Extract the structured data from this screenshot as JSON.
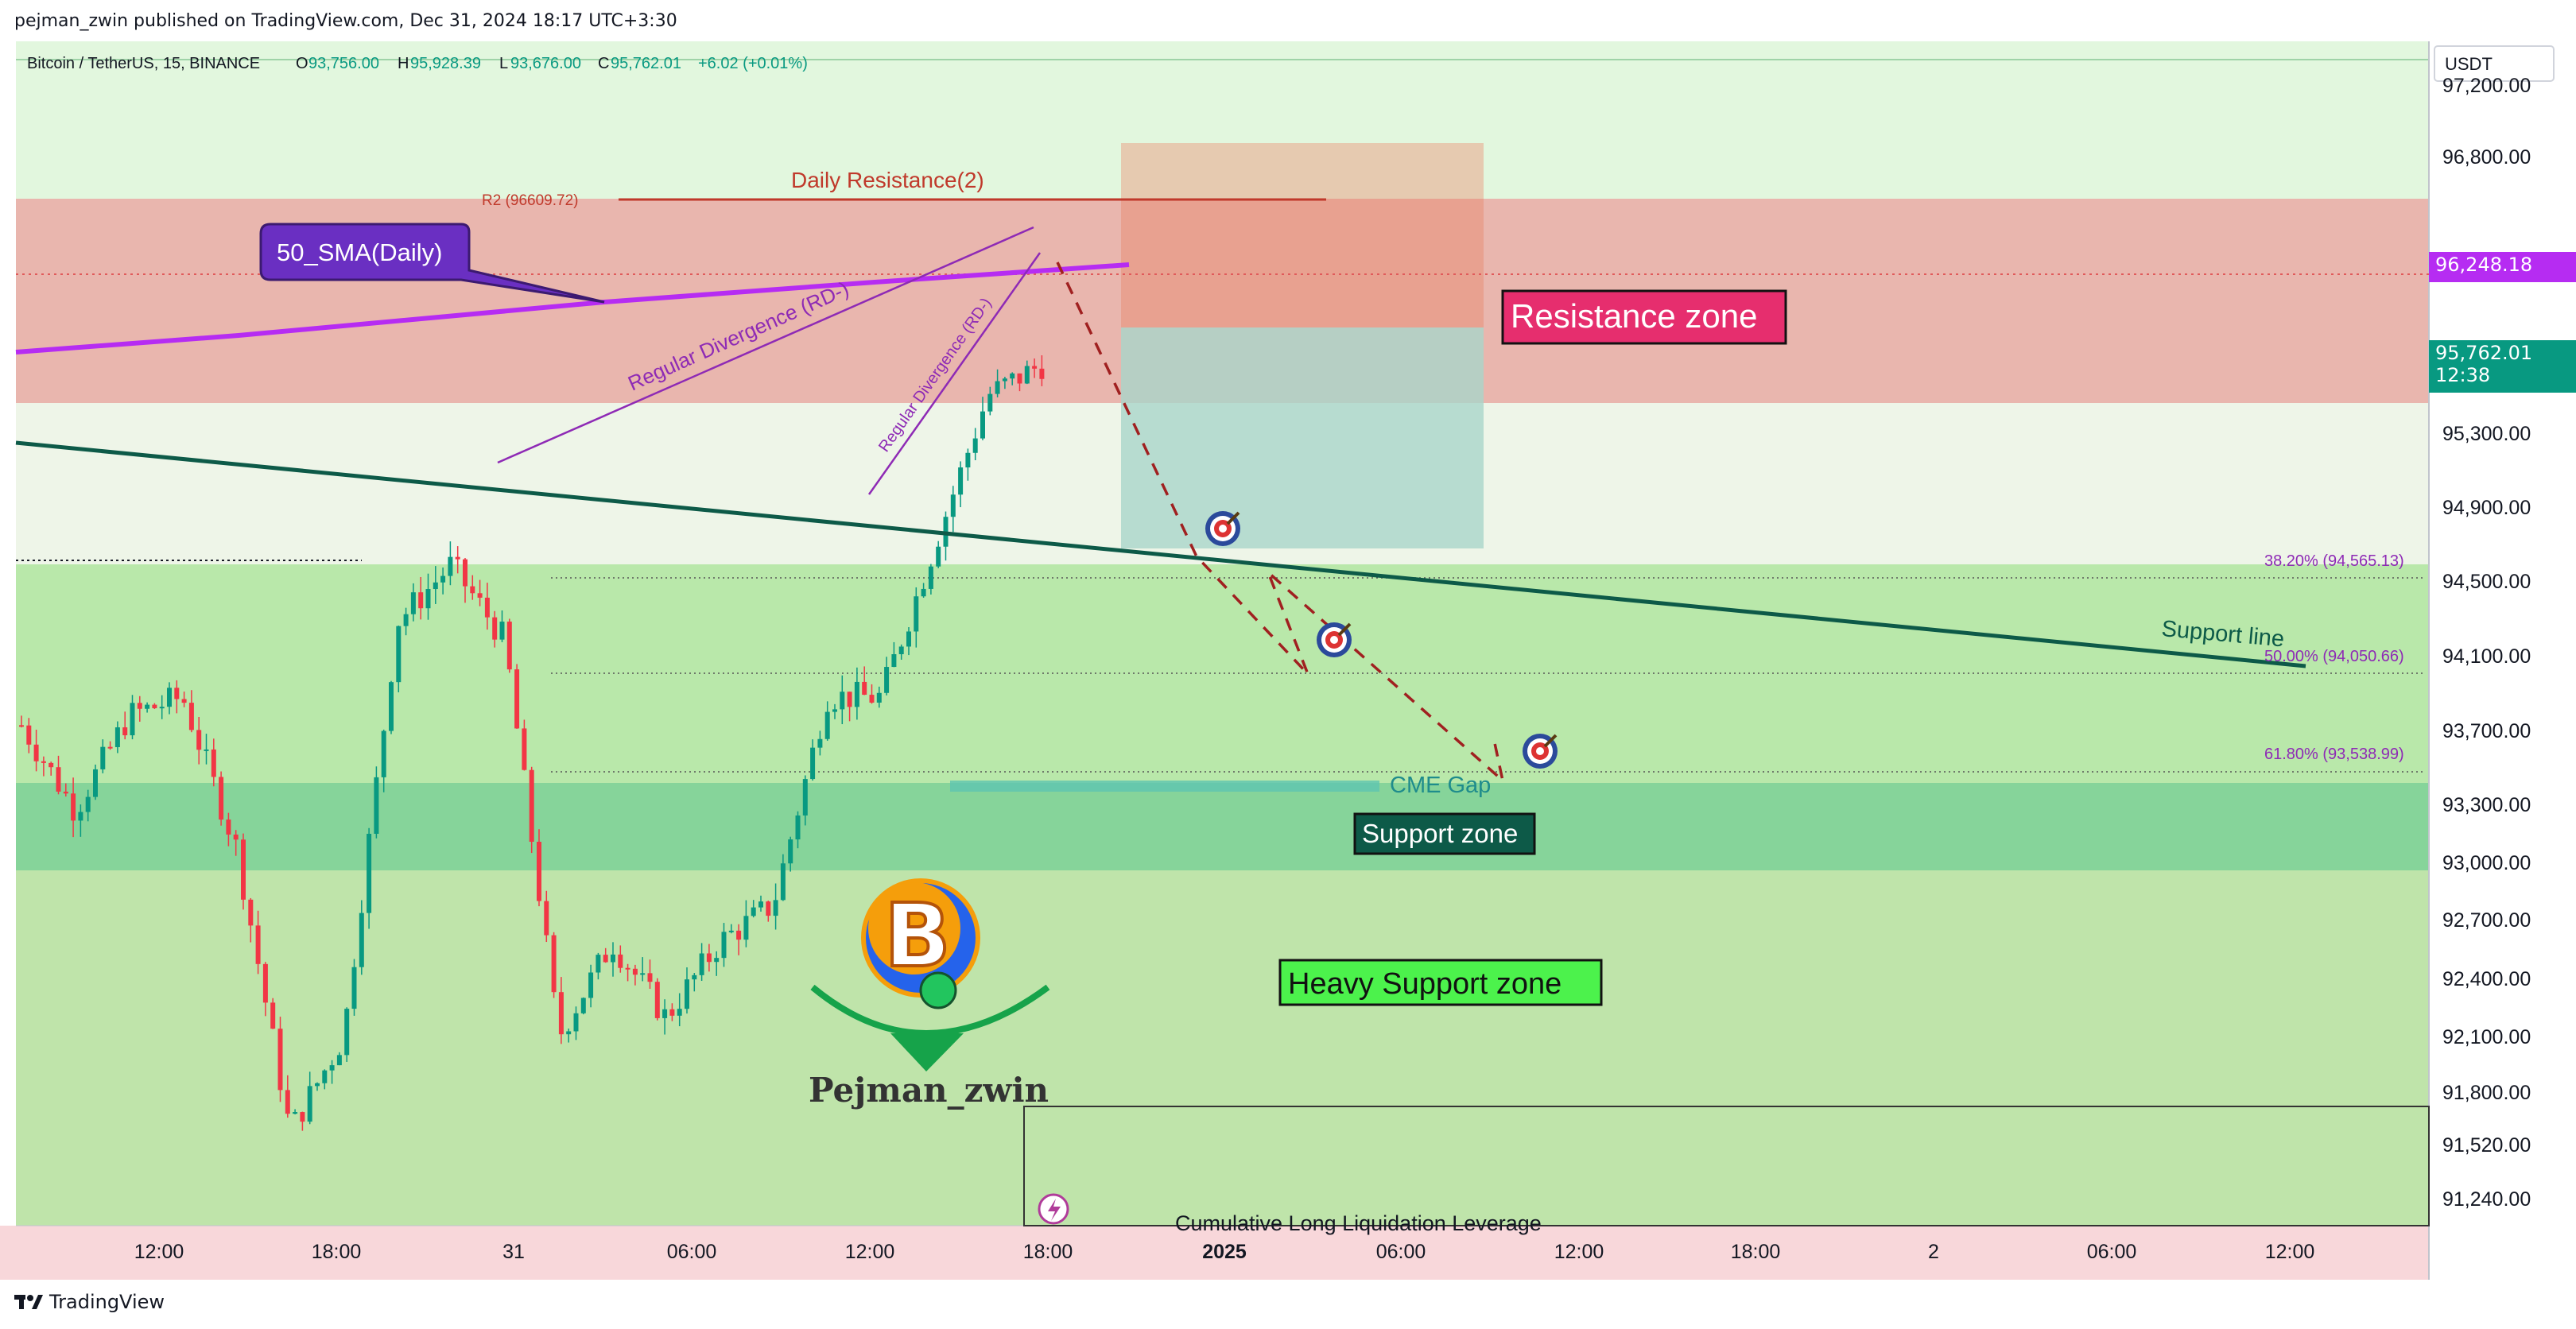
{
  "header": {
    "publish_line": "pejman_zwin published on TradingView.com, Dec 31, 2024 18:17 UTC+3:30"
  },
  "legend": {
    "symbol": "Bitcoin / TetherUS, 15, BINANCE",
    "o_label": "O",
    "o_value": "93,756.00",
    "h_label": "H",
    "h_value": "95,928.39",
    "l_label": "L",
    "l_value": "93,676.00",
    "c_label": "C",
    "c_value": "95,762.01",
    "change": "+6.02 (+0.01%)"
  },
  "currency": "USDT",
  "price_axis": {
    "ticks": [
      "97,200.00",
      "96,800.00",
      "95,300.00",
      "94,900.00",
      "94,500.00",
      "94,100.00",
      "93,700.00",
      "93,300.00",
      "93,000.00",
      "92,700.00",
      "92,400.00",
      "92,100.00",
      "91,800.00",
      "91,520.00",
      "91,240.00"
    ]
  },
  "price_tags": {
    "sma_value": "96,248.18",
    "last_price": "95,762.01",
    "countdown": "12:38"
  },
  "time_axis": {
    "ticks": [
      "12:00",
      "18:00",
      "31",
      "06:00",
      "12:00",
      "18:00",
      "2025",
      "06:00",
      "12:00",
      "18:00",
      "2",
      "06:00",
      "12:00"
    ]
  },
  "annotations": {
    "daily_resistance": "Daily Resistance(2)",
    "r2": "R2 (96609.72)",
    "sma_callout": "50_SMA(Daily)",
    "divergence_1": "Regular Divergence (RD-)",
    "divergence_2": "Regular Divergence (RD-)",
    "resistance_zone": "Resistance zone",
    "support_line": "Support line",
    "fib_382": "38.20% (94,565.13)",
    "fib_50": "50.00% (94,050.66)",
    "fib_618": "61.80% (93,538.99)",
    "cme_gap": "CME Gap",
    "support_zone": "Support zone",
    "heavy_support_zone": "Heavy Support zone",
    "liquidation": "Cumulative Long Liquidation Leverage",
    "author": "Pejman_zwin",
    "logo_letter": "B"
  },
  "footer": {
    "brand": "TradingView"
  },
  "colors": {
    "up": "#089981",
    "down": "#f23645",
    "sma": "#b62cf2",
    "resistance_bg": "#e8a8a3",
    "support_bg": "#86d49a",
    "heavy_support_bg": "#bfe4aa",
    "upper_bg": "#e2f7de"
  },
  "chart_data": {
    "type": "candlestick",
    "symbol": "Bitcoin / TetherUS",
    "interval": "15",
    "exchange": "BINANCE",
    "y_axis_unit": "USDT",
    "ylim": [
      91100,
      97400
    ],
    "last_ohlc": {
      "open": 93756.0,
      "high": 95928.39,
      "low": 93676.0,
      "close": 95762.01
    },
    "price_path": [
      {
        "t": "Dec 30 09:00",
        "price": 93850
      },
      {
        "t": "Dec 30 10:30",
        "price": 93400
      },
      {
        "t": "Dec 30 12:00",
        "price": 93900
      },
      {
        "t": "Dec 30 14:30",
        "price": 94000
      },
      {
        "t": "Dec 30 16:00",
        "price": 93200
      },
      {
        "t": "Dec 30 18:00",
        "price": 91700
      },
      {
        "t": "Dec 30 19:30",
        "price": 92200
      },
      {
        "t": "Dec 30 21:00",
        "price": 94400
      },
      {
        "t": "Dec 30 22:30",
        "price": 94700
      },
      {
        "t": "Dec 31 00:00",
        "price": 94300
      },
      {
        "t": "Dec 31 01:00",
        "price": 92200
      },
      {
        "t": "Dec 31 03:00",
        "price": 92700
      },
      {
        "t": "Dec 31 06:00",
        "price": 92300
      },
      {
        "t": "Dec 31 09:00",
        "price": 92700
      },
      {
        "t": "Dec 31 11:00",
        "price": 92900
      },
      {
        "t": "Dec 31 12:00",
        "price": 94000
      },
      {
        "t": "Dec 31 14:00",
        "price": 94000
      },
      {
        "t": "Dec 31 15:30",
        "price": 94800
      },
      {
        "t": "Dec 31 17:00",
        "price": 95600
      },
      {
        "t": "Dec 31 18:00",
        "price": 95762
      }
    ],
    "zones": [
      {
        "name": "Resistance zone",
        "from": 95580,
        "to": 96630
      },
      {
        "name": "Support zone",
        "from": 93000,
        "to": 93450
      },
      {
        "name": "Heavy Support zone",
        "from": 91100,
        "to": 93000
      }
    ],
    "levels": [
      {
        "name": "R2",
        "value": 96609.72
      },
      {
        "name": "38.20%",
        "value": 94565.13
      },
      {
        "name": "50.00%",
        "value": 94050.66
      },
      {
        "name": "61.80%",
        "value": 93538.99
      }
    ],
    "sma_50_daily_last": 96248.18,
    "projection": [
      {
        "t": "Dec 31 18:00",
        "price": 96150
      },
      {
        "t": "Jan 1 03:00",
        "price": 94100
      },
      {
        "t": "Jan 1 09:30",
        "price": 93450
      }
    ],
    "targets": [
      94900,
      94330,
      93730
    ]
  }
}
